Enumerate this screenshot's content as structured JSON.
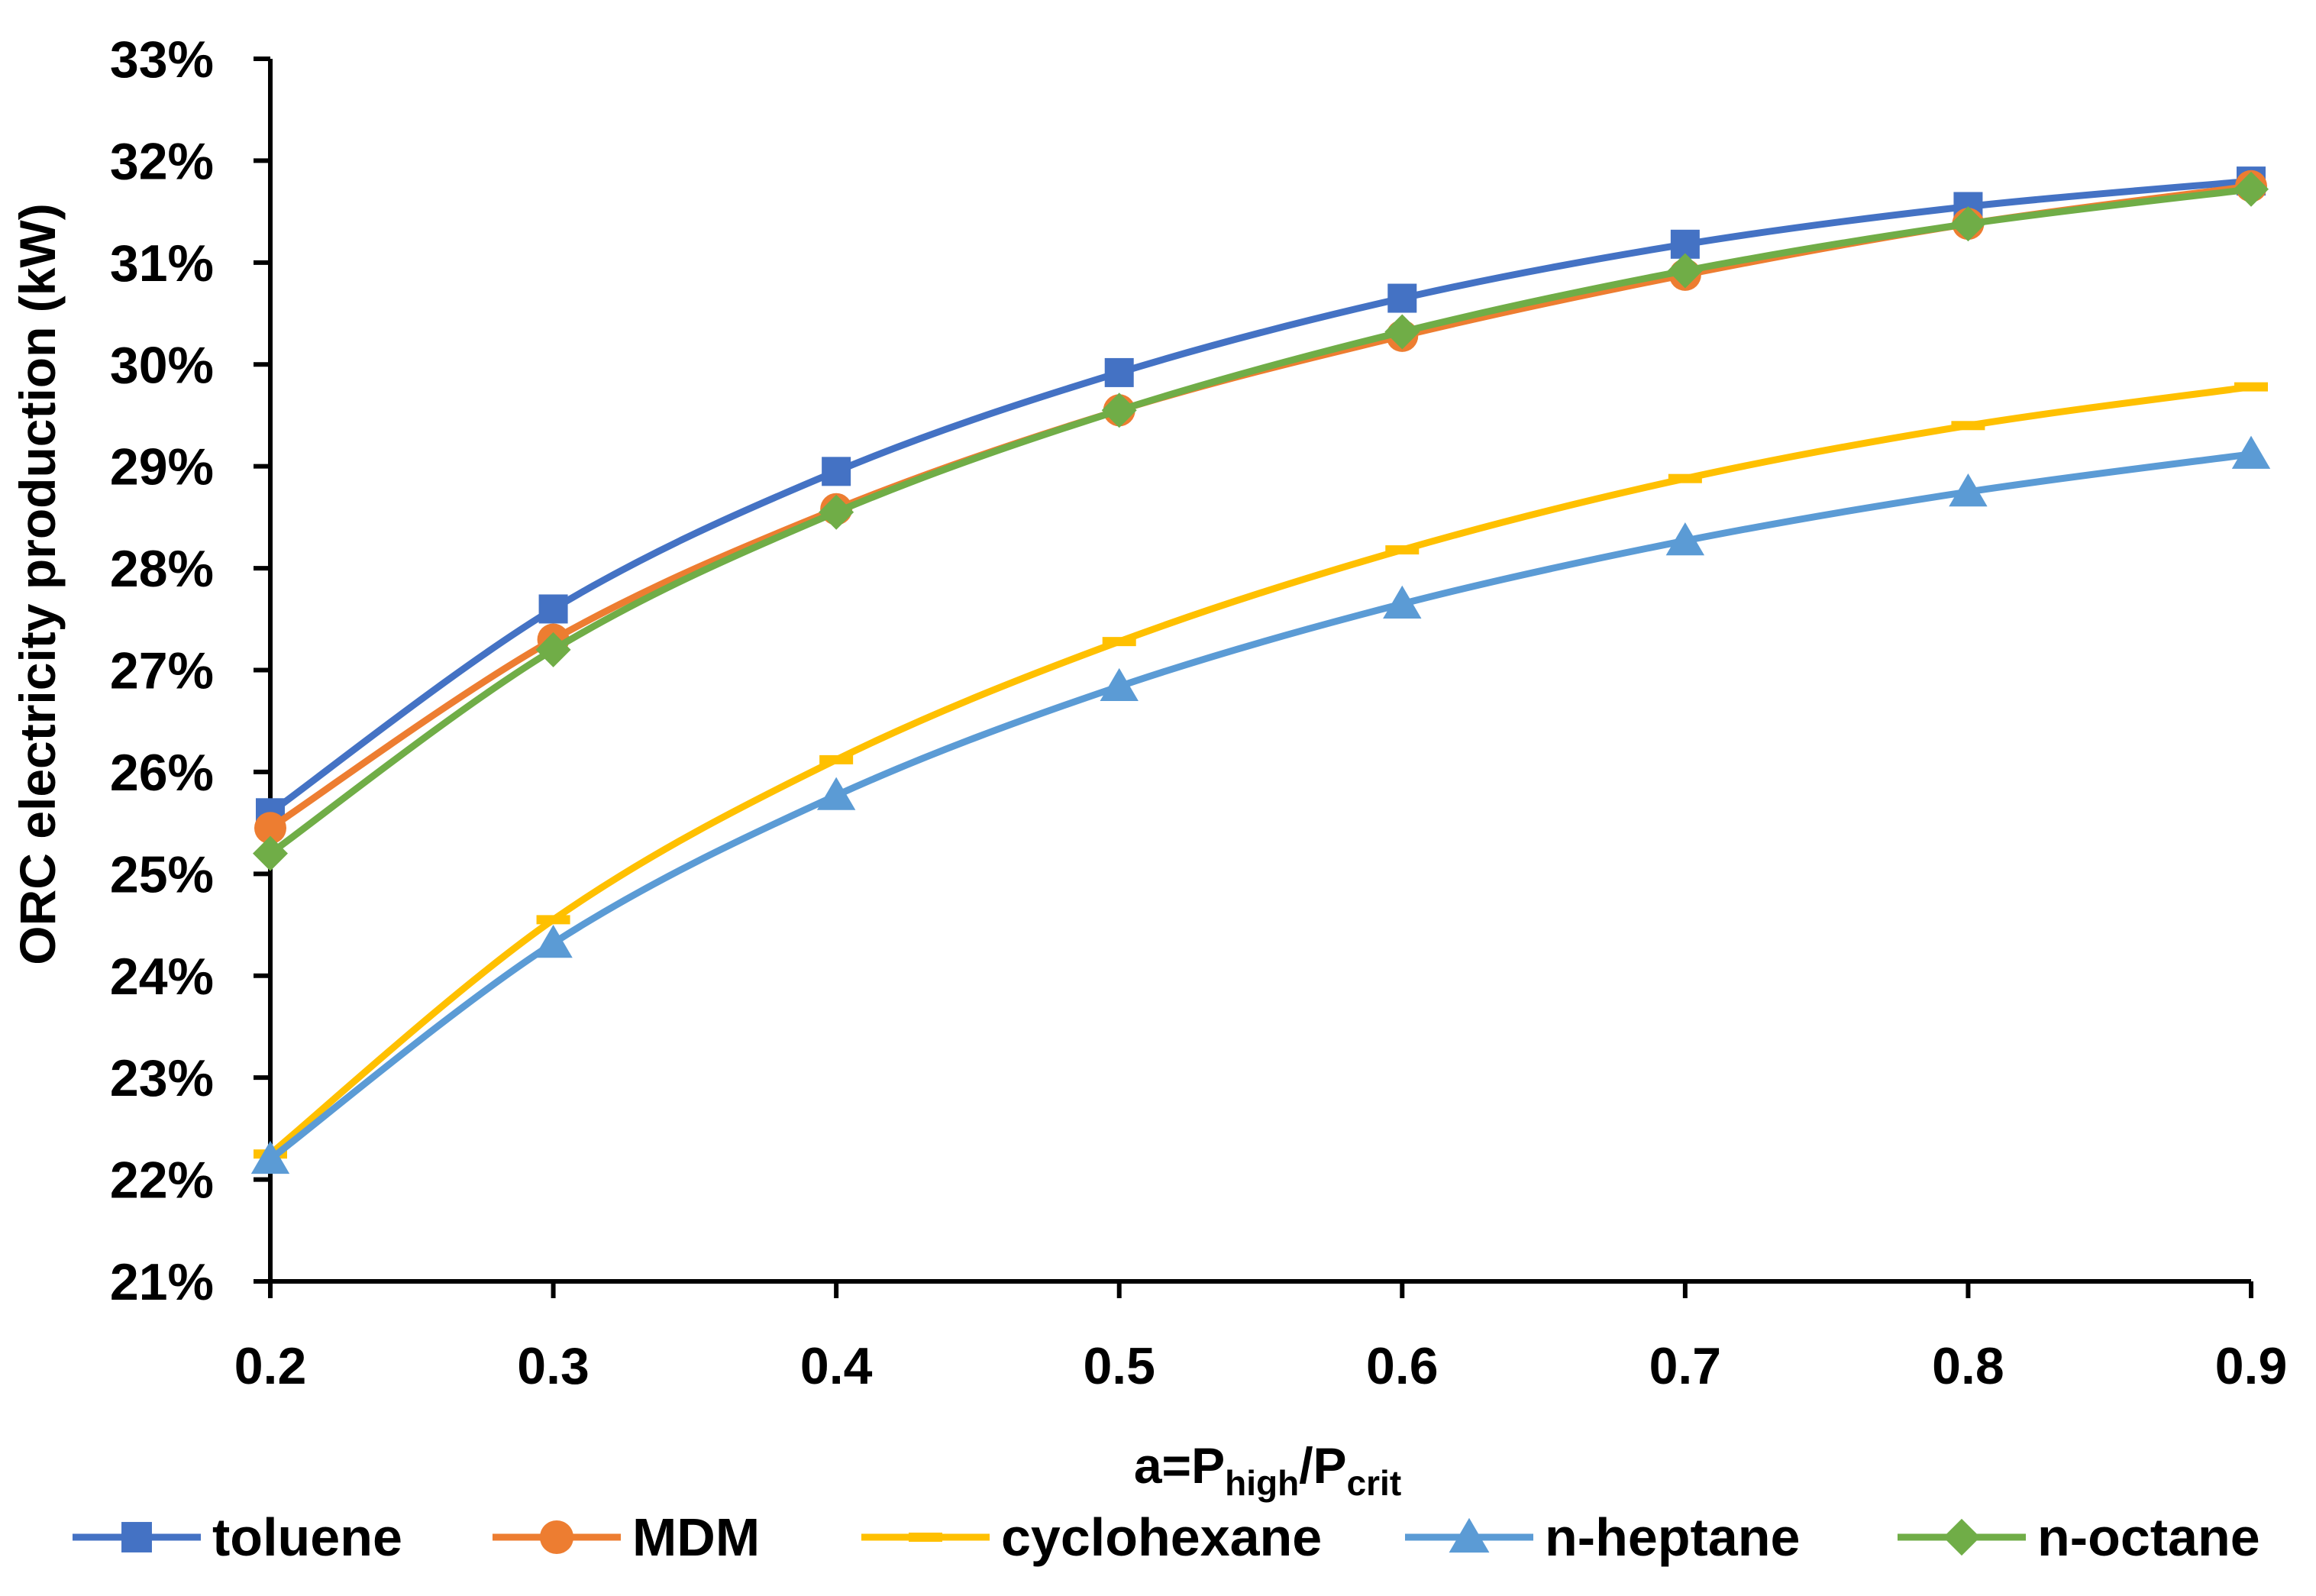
{
  "chart_data": {
    "type": "line",
    "title": "",
    "xlabel": {
      "prefix": "a=P",
      "sub1": "high",
      "mid": "/P",
      "sub2": "crit"
    },
    "ylabel": "ORC electricity production (kW)",
    "x": [
      0.2,
      0.3,
      0.4,
      0.5,
      0.6,
      0.7,
      0.8,
      0.9
    ],
    "xlim": [
      0.2,
      0.9
    ],
    "ylim": [
      21,
      33
    ],
    "x_ticks": [
      "0.2",
      "0.3",
      "0.4",
      "0.5",
      "0.6",
      "0.7",
      "0.8",
      "0.9"
    ],
    "y_ticks": [
      "21%",
      "22%",
      "23%",
      "24%",
      "25%",
      "26%",
      "27%",
      "28%",
      "29%",
      "30%",
      "31%",
      "32%",
      "33%"
    ],
    "grid": false,
    "legend_position": "bottom",
    "series": [
      {
        "name": "toluene",
        "color": "#4472C4",
        "marker": "square",
        "values": [
          25.6,
          27.6,
          28.95,
          29.92,
          30.65,
          31.18,
          31.55,
          31.8
        ]
      },
      {
        "name": "MDM",
        "color": "#ED7D31",
        "marker": "circle",
        "values": [
          25.45,
          27.3,
          28.58,
          29.55,
          30.28,
          30.88,
          31.38,
          31.75
        ]
      },
      {
        "name": "cyclohexane",
        "color": "#FFC000",
        "marker": "dash",
        "values": [
          22.25,
          24.55,
          26.12,
          27.28,
          28.18,
          28.88,
          29.4,
          29.78
        ]
      },
      {
        "name": "n-heptane",
        "color": "#5B9BD5",
        "marker": "triangle",
        "values": [
          22.2,
          24.32,
          25.77,
          26.84,
          27.65,
          28.27,
          28.75,
          29.12
        ]
      },
      {
        "name": "n-octane",
        "color": "#70AD47",
        "marker": "diamond",
        "values": [
          25.2,
          27.2,
          28.55,
          29.55,
          30.32,
          30.92,
          31.38,
          31.72
        ]
      }
    ]
  }
}
